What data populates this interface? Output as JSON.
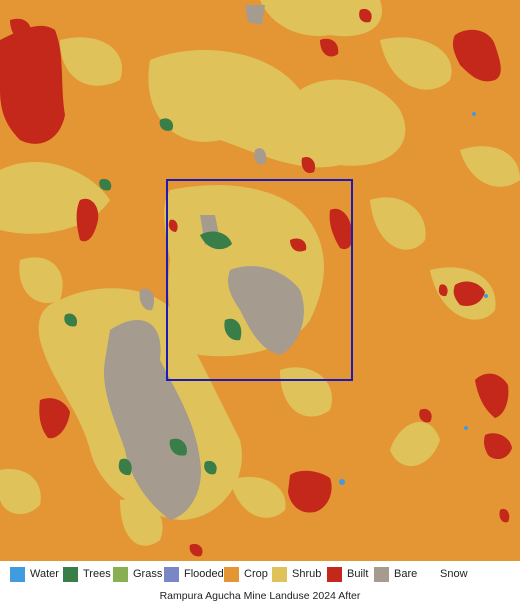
{
  "map": {
    "title": "Rampura Agucha Mine Landuse 2024 After",
    "colors": {
      "water": "#419bdf",
      "trees": "#397d49",
      "grass": "#88b053",
      "flooded": "#7a87c6",
      "crop": "#e49635",
      "shrub": "#dfc35a",
      "built": "#c4281b",
      "bare": "#a59b8f",
      "snow": "#ffffff",
      "highlight_box": "#1c1cb4"
    }
  },
  "legend": {
    "items": [
      {
        "label": "Water",
        "color": "#419bdf"
      },
      {
        "label": "Trees",
        "color": "#397d49"
      },
      {
        "label": "Grass",
        "color": "#88b053"
      },
      {
        "label": "Flooded",
        "color": "#7a87c6"
      },
      {
        "label": "Crop",
        "color": "#e49635"
      },
      {
        "label": "Shrub",
        "color": "#dfc35a"
      },
      {
        "label": "Built",
        "color": "#c4281b"
      },
      {
        "label": "Bare",
        "color": "#a59b8f"
      },
      {
        "label": "Snow",
        "color": "#ffffff"
      }
    ]
  }
}
